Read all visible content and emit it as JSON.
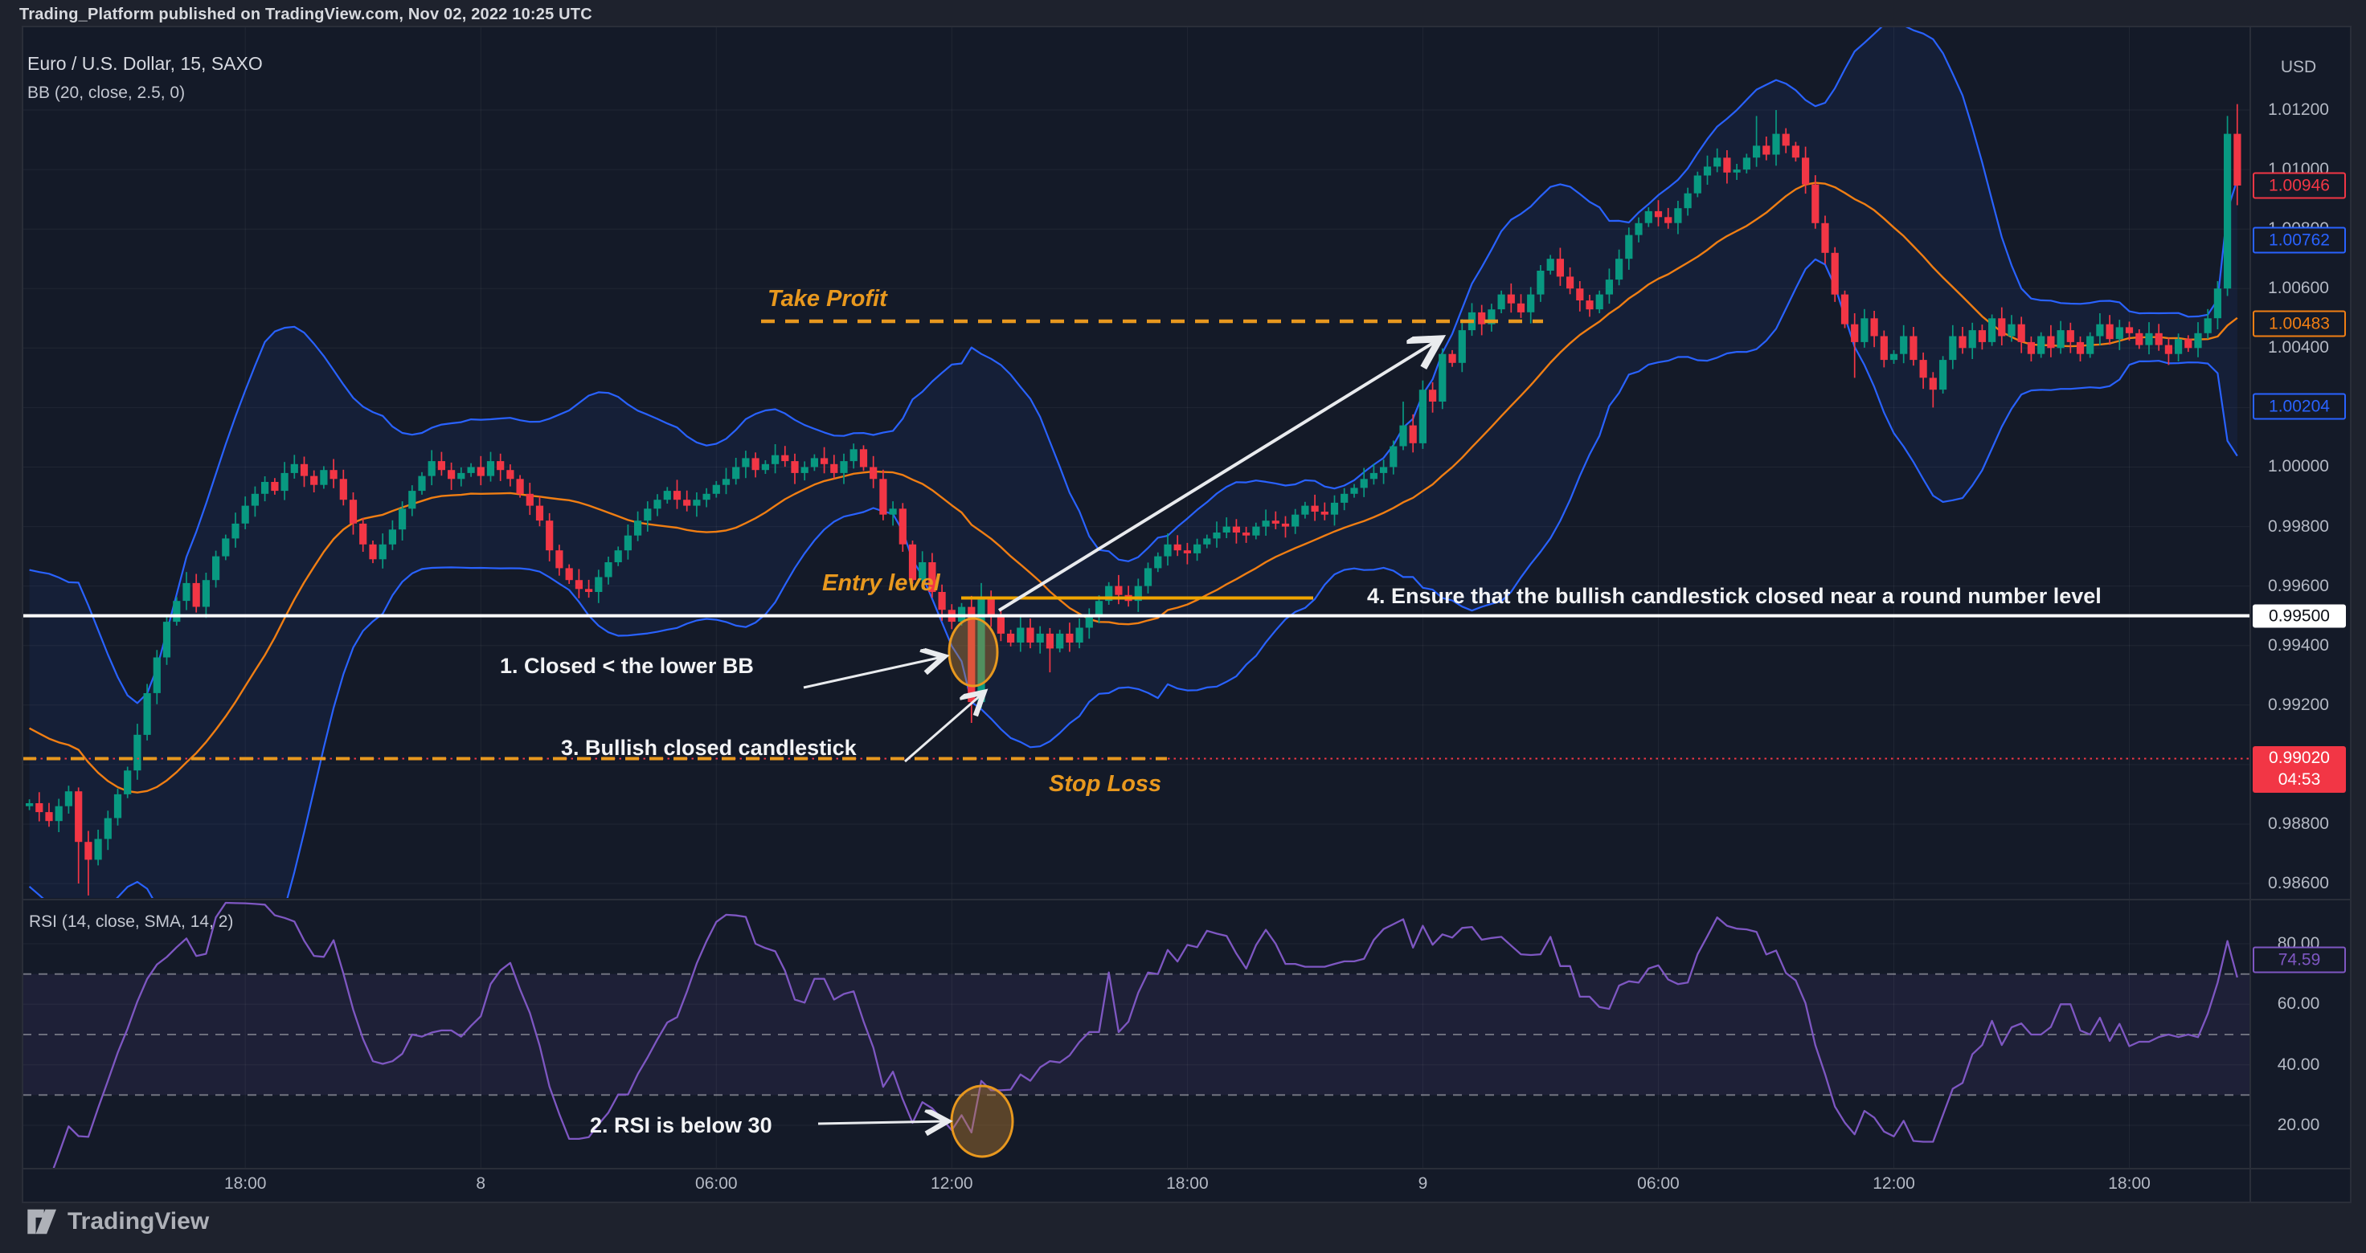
{
  "page": {
    "publish_bar": "Trading_Platform published on TradingView.com, Nov 02, 2022 10:25 UTC",
    "watermark": "TradingView"
  },
  "chart": {
    "symbol_title": "Euro / U.S. Dollar, 15, SAXO",
    "indicator_title": "BB (20, close, 2.5, 0)",
    "rsi_title": "RSI (14, close, SMA, 14, 2)",
    "axis_currency": "USD"
  },
  "annotations": {
    "take_profit": "Take Profit",
    "entry_level": "Entry level",
    "stop_loss": "Stop Loss",
    "note1": "1. Closed < the lower BB",
    "note2": "2. RSI is below 30",
    "note3": "3. Bullish closed candlestick",
    "note4": "4. Ensure that the bullish candlestick closed near a round number level"
  },
  "colors": {
    "background": "#1E222D",
    "pane": "#141A28",
    "grid": "rgba(250,250,250,0.055)",
    "up": "#089981",
    "down": "#F23645",
    "bb_band": "#2962FF",
    "bb_basis": "#F07E13",
    "annotation_orange": "#E8981E",
    "rsi_line": "#7E57C2",
    "white_line": "#FFFFFF",
    "axis_text": "#B4B9C4",
    "arrow": "#E9EBEE"
  },
  "price_axis_labels": [
    {
      "text": "1.01200",
      "value": 1.012
    },
    {
      "text": "1.01000",
      "value": 1.01
    },
    {
      "text": "1.00800",
      "value": 1.008
    },
    {
      "text": "1.00600",
      "value": 1.006
    },
    {
      "text": "1.00400",
      "value": 1.004
    },
    {
      "text": "1.00200",
      "value": 1.002
    },
    {
      "text": "1.00000",
      "value": 1.0
    },
    {
      "text": "0.99800",
      "value": 0.998
    },
    {
      "text": "0.99600",
      "value": 0.996
    },
    {
      "text": "0.99400",
      "value": 0.994
    },
    {
      "text": "0.99200",
      "value": 0.992
    },
    {
      "text": "0.99000",
      "value": 0.99
    },
    {
      "text": "0.98800",
      "value": 0.988
    },
    {
      "text": "0.98600",
      "value": 0.986
    }
  ],
  "price_badges": [
    {
      "name": "last-price-badge",
      "text": "1.00946",
      "value": 1.00946,
      "style": "outline",
      "color": "#F23645"
    },
    {
      "name": "bb-upper-badge",
      "text": "1.00762",
      "value": 1.00762,
      "style": "outline",
      "color": "#2962FF"
    },
    {
      "name": "bb-basis-badge",
      "text": "1.00483",
      "value": 1.00483,
      "style": "outline",
      "color": "#F07E13"
    },
    {
      "name": "bb-lower-badge",
      "text": "1.00204",
      "value": 1.00204,
      "style": "outline",
      "color": "#2962FF"
    },
    {
      "name": "round-level-badge",
      "text": "0.99500",
      "value": 0.995,
      "style": "solid",
      "bg": "#FFFFFF",
      "fg": "#0B0E14"
    },
    {
      "name": "stop-loss-badge",
      "text": "0.99020",
      "sub": "04:53",
      "value": 0.9902,
      "style": "solid",
      "bg": "#F23645",
      "fg": "#FFFFFF"
    }
  ],
  "rsi_badge": {
    "text": "74.59",
    "value": 74.59,
    "color": "#7E57C2"
  },
  "rsi_axis_labels": [
    {
      "text": "80.00",
      "value": 80
    },
    {
      "text": "60.00",
      "value": 60
    },
    {
      "text": "40.00",
      "value": 40
    },
    {
      "text": "20.00",
      "value": 20
    }
  ],
  "time_axis_labels": [
    {
      "text": "18:00",
      "bar": 22
    },
    {
      "text": "8",
      "bar": 46
    },
    {
      "text": "06:00",
      "bar": 70
    },
    {
      "text": "12:00",
      "bar": 94
    },
    {
      "text": "18:00",
      "bar": 118
    },
    {
      "text": "9",
      "bar": 142
    },
    {
      "text": "06:00",
      "bar": 166
    },
    {
      "text": "12:00",
      "bar": 190
    },
    {
      "text": "18:00",
      "bar": 214
    }
  ],
  "chart_data": {
    "type": "candlestick",
    "symbol": "EURUSD",
    "exchange": "SAXO",
    "interval_minutes": 15,
    "price_range_visible": [
      0.9855,
      1.0141
    ],
    "bb_params": {
      "length": 20,
      "source": "close",
      "stddev": 2.5,
      "offset": 0
    },
    "rsi_params": {
      "length": 14,
      "source": "close",
      "ma_type": "SMA",
      "ma_length": 14,
      "bb_stddev": 2
    },
    "rsi_levels_dashed": [
      70,
      50,
      30
    ],
    "levels": {
      "take_profit": 1.0049,
      "entry": 0.9956,
      "stop_loss": 0.9902,
      "round_number": 0.995
    },
    "last_price": 1.00946,
    "last_rsi": 74.59,
    "pre_closes": [
      0.9952,
      0.9945,
      0.9938,
      0.9931,
      0.9925,
      0.9919,
      0.9914,
      0.9909,
      0.9904,
      0.9899,
      0.9895,
      0.9891,
      0.9888,
      0.9886
    ],
    "closes": [
      0.9887,
      0.9884,
      0.9881,
      0.9886,
      0.9891,
      0.9874,
      0.9868,
      0.9875,
      0.9882,
      0.989,
      0.9898,
      0.991,
      0.9924,
      0.9936,
      0.9948,
      0.9955,
      0.9961,
      0.9953,
      0.9962,
      0.997,
      0.9976,
      0.9981,
      0.9987,
      0.9991,
      0.9995,
      0.9992,
      0.9998,
      1.0001,
      0.9997,
      0.9994,
      0.9999,
      0.9996,
      0.9989,
      0.9981,
      0.9974,
      0.9969,
      0.9974,
      0.9979,
      0.9986,
      0.9992,
      0.9997,
      1.0002,
      0.9999,
      0.9996,
      0.9998,
      1.0,
      0.9997,
      1.0002,
      0.9999,
      0.9996,
      0.9991,
      0.9987,
      0.9982,
      0.9972,
      0.9966,
      0.9962,
      0.9959,
      0.9958,
      0.9963,
      0.9968,
      0.9972,
      0.9977,
      0.9982,
      0.9986,
      0.9989,
      0.9992,
      0.9989,
      0.9987,
      0.9989,
      0.9991,
      0.9994,
      0.9996,
      1.0,
      1.0003,
      0.9999,
      1.0001,
      1.0004,
      1.0002,
      0.9998,
      1.0,
      1.0003,
      1.0001,
      0.9998,
      1.0002,
      1.0006,
      1.0,
      0.9996,
      0.9984,
      0.9986,
      0.9974,
      0.9962,
      0.9968,
      0.9958,
      0.9952,
      0.9948,
      0.9953,
      0.9921,
      0.9956,
      0.995,
      0.9944,
      0.9941,
      0.9946,
      0.9941,
      0.9944,
      0.9939,
      0.9944,
      0.9941,
      0.9946,
      0.995,
      0.9955,
      0.996,
      0.9957,
      0.9955,
      0.996,
      0.9966,
      0.997,
      0.9974,
      0.9972,
      0.9971,
      0.9974,
      0.9976,
      0.9978,
      0.998,
      0.9978,
      0.9977,
      0.998,
      0.9982,
      0.9981,
      0.998,
      0.9984,
      0.9987,
      0.9985,
      0.9984,
      0.9988,
      0.9991,
      0.9993,
      0.9996,
      0.9998,
      1.0,
      1.0007,
      1.0014,
      1.0008,
      1.0026,
      1.0022,
      1.0038,
      1.0035,
      1.0046,
      1.0052,
      1.0048,
      1.0053,
      1.0058,
      1.0055,
      1.0052,
      1.0058,
      1.0066,
      1.007,
      1.0064,
      1.006,
      1.0056,
      1.0053,
      1.0058,
      1.0063,
      1.007,
      1.0078,
      1.0082,
      1.0086,
      1.0084,
      1.0082,
      1.0087,
      1.0092,
      1.0098,
      1.0101,
      1.0104,
      1.0099,
      1.01,
      1.0104,
      1.0108,
      1.0105,
      1.0112,
      1.0108,
      1.0104,
      1.0095,
      1.0082,
      1.0072,
      1.0058,
      1.0048,
      1.0042,
      1.005,
      1.0044,
      1.0036,
      1.0038,
      1.0044,
      1.0036,
      1.003,
      1.0026,
      1.0036,
      1.0044,
      1.004,
      1.0046,
      1.0042,
      1.005,
      1.0044,
      1.0048,
      1.0042,
      1.0038,
      1.0044,
      1.004,
      1.0046,
      1.0042,
      1.0038,
      1.0044,
      1.0048,
      1.0043,
      1.0047,
      1.0045,
      1.0041,
      1.0045,
      1.0041,
      1.0038,
      1.0043,
      1.004,
      1.0045,
      1.005,
      1.006,
      1.0112,
      1.00946
    ],
    "wick_overrides": {
      "5": {
        "low": 0.986
      },
      "6": {
        "low": 0.9856
      },
      "96": {
        "low": 0.9914
      },
      "97": {
        "high": 0.9961
      },
      "104": {
        "low": 0.9931
      },
      "140": {
        "high": 1.0022
      },
      "176": {
        "high": 1.0118
      },
      "178": {
        "high": 1.012
      },
      "186": {
        "low": 1.003
      },
      "194": {
        "low": 1.002
      },
      "224": {
        "high": 1.0118
      },
      "225": {
        "high": 1.0122,
        "low": 1.0088
      }
    }
  }
}
